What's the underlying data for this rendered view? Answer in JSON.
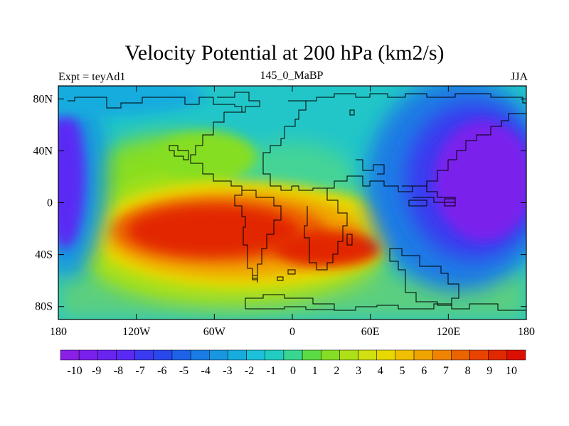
{
  "chart_data": {
    "type": "heatmap",
    "title": "Velocity Potential at 200 hPa (km2/s)",
    "left_string": "Expt = teyAd1",
    "center_string": "145_0_MaBP",
    "right_string": "JJA",
    "x_ticks": [
      "180",
      "120W",
      "60W",
      "0",
      "60E",
      "120E",
      "180"
    ],
    "x_tick_values": [
      -180,
      -120,
      -60,
      0,
      60,
      120,
      180
    ],
    "y_ticks": [
      "80N",
      "40N",
      "0",
      "40S",
      "80S"
    ],
    "y_tick_values": [
      80,
      40,
      0,
      -40,
      -80
    ],
    "xlim": [
      -180,
      180
    ],
    "ylim": [
      -90,
      90
    ],
    "colorbar": {
      "labels": [
        "-10",
        "-9",
        "-8",
        "-7",
        "-6",
        "-5",
        "-4",
        "-3",
        "-2",
        "-1",
        "0",
        "1",
        "2",
        "3",
        "4",
        "5",
        "6",
        "7",
        "8",
        "9",
        "10"
      ],
      "levels": [
        -10,
        -9,
        -8,
        -7,
        -6,
        -5,
        -4,
        -3,
        -2,
        -1,
        0,
        1,
        2,
        3,
        4,
        5,
        6,
        7,
        8,
        9,
        10
      ],
      "colors": [
        "#8a1fe6",
        "#7a20ec",
        "#6a24f0",
        "#5a2af4",
        "#3a3af0",
        "#2848ec",
        "#1e62e8",
        "#1a7ce4",
        "#1896e0",
        "#18acde",
        "#1cc0d8",
        "#22ccc0",
        "#38d690",
        "#5cdc44",
        "#86de24",
        "#aee018",
        "#d0e010",
        "#e8d800",
        "#f0c000",
        "#f0a400",
        "#f08400",
        "#ec6400",
        "#e84400",
        "#e22800",
        "#dc1000"
      ]
    },
    "centers": [
      {
        "name": "west-pacific-minimum",
        "lon": 155,
        "lat": 15,
        "value": -10
      },
      {
        "name": "east-pacific-minimum",
        "lon": -175,
        "lat": 15,
        "value": -9
      },
      {
        "name": "south-atlantic-maximum",
        "lon": -70,
        "lat": -20,
        "value": 10
      },
      {
        "name": "south-africa-maximum",
        "lon": 40,
        "lat": -35,
        "value": 10
      }
    ]
  }
}
